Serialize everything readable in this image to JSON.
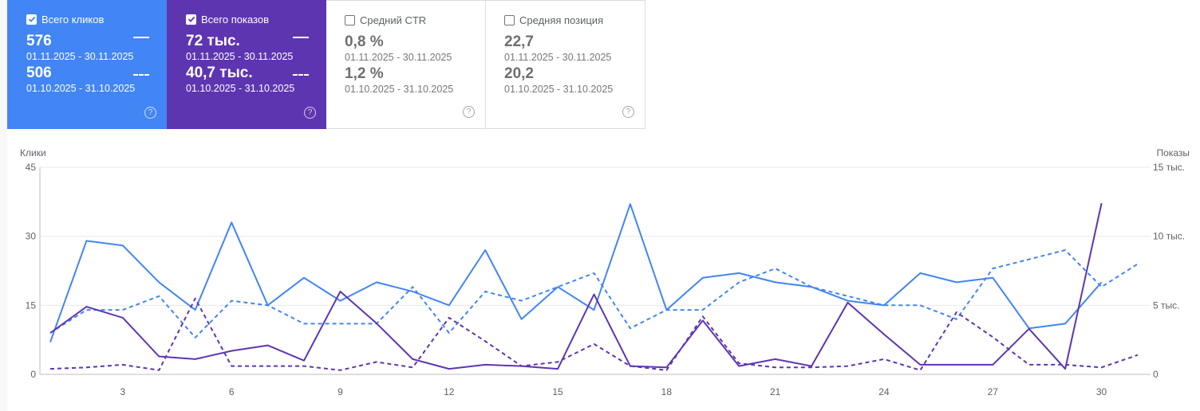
{
  "cards": [
    {
      "title": "Всего кликов",
      "checked": true,
      "value_current": "576",
      "range_current": "01.11.2025 - 30.11.2025",
      "value_previous": "506",
      "range_previous": "01.10.2025 - 31.10.2025",
      "color": "#4285f4"
    },
    {
      "title": "Всего показов",
      "checked": true,
      "value_current": "72 тыс.",
      "range_current": "01.11.2025 - 30.11.2025",
      "value_previous": "40,7 тыс.",
      "range_previous": "01.10.2025 - 31.10.2025",
      "color": "#5e35b1"
    },
    {
      "title": "Средний CTR",
      "checked": false,
      "value_current": "0,8 %",
      "range_current": "01.11.2025 - 30.11.2025",
      "value_previous": "1,2 %",
      "range_previous": "01.10.2025 - 31.10.2025"
    },
    {
      "title": "Средняя позиция",
      "checked": false,
      "value_current": "22,7",
      "range_current": "01.11.2025 - 30.11.2025",
      "value_previous": "20,2",
      "range_previous": "01.10.2025 - 31.10.2025"
    }
  ],
  "help_glyph": "?",
  "chart_data": {
    "type": "line",
    "ylabel_left": "Клики",
    "ylabel_right": "Показы",
    "x": [
      1,
      2,
      3,
      4,
      5,
      6,
      7,
      8,
      9,
      10,
      11,
      12,
      13,
      14,
      15,
      16,
      17,
      18,
      19,
      20,
      21,
      22,
      23,
      24,
      25,
      26,
      27,
      28,
      29,
      30,
      31
    ],
    "x_ticks": [
      3,
      6,
      9,
      12,
      15,
      18,
      21,
      24,
      27,
      30
    ],
    "ylim_left": [
      0,
      45
    ],
    "yticks_left": [
      "0",
      "15",
      "30",
      "45"
    ],
    "ylim_right": [
      0,
      15000
    ],
    "yticks_right": [
      "0",
      "5 тыс.",
      "10 тыс.",
      "15 тыс."
    ],
    "grid": true,
    "series": [
      {
        "axis": "left",
        "style": "solid",
        "color": "#4285f4",
        "values": [
          7,
          29,
          28,
          20,
          14,
          33,
          15,
          21,
          16,
          20,
          18,
          15,
          27,
          12,
          19,
          14,
          37,
          14,
          21,
          22,
          20,
          19,
          16,
          15,
          22,
          20,
          21,
          10,
          11,
          20,
          null
        ]
      },
      {
        "axis": "left",
        "style": "dashed",
        "color": "#4285f4",
        "values": [
          9,
          14,
          14,
          17,
          8,
          16,
          15,
          11,
          11,
          11,
          19,
          9,
          18,
          16,
          19,
          22,
          10,
          14,
          14,
          20,
          23,
          19,
          17,
          15,
          15,
          12,
          23,
          25,
          27,
          19,
          24
        ]
      },
      {
        "axis": "right",
        "style": "solid",
        "color": "#5e35b1",
        "values": [
          3000,
          4900,
          4100,
          1300,
          1100,
          1700,
          2100,
          1000,
          6000,
          3700,
          1100,
          400,
          700,
          600,
          400,
          5800,
          600,
          500,
          3900,
          600,
          1100,
          600,
          5200,
          2900,
          700,
          700,
          700,
          3300,
          400,
          12400,
          null
        ]
      },
      {
        "axis": "right",
        "style": "dashed",
        "color": "#5e35b1",
        "values": [
          400,
          500,
          700,
          300,
          5500,
          600,
          600,
          600,
          300,
          900,
          500,
          4100,
          2400,
          600,
          900,
          2200,
          600,
          300,
          4200,
          800,
          500,
          500,
          600,
          1100,
          300,
          4500,
          2700,
          700,
          700,
          500,
          1400
        ]
      }
    ]
  }
}
